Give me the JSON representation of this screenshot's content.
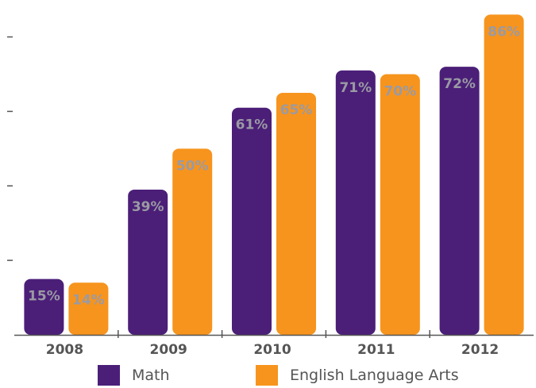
{
  "chart_data": {
    "type": "bar",
    "categories": [
      "2008",
      "2009",
      "2010",
      "2011",
      "2012"
    ],
    "series": [
      {
        "name": "Math",
        "values": [
          15,
          39,
          61,
          71,
          72
        ],
        "labels": [
          "15%",
          "39%",
          "61%",
          "71%",
          "72%"
        ],
        "color": "#4b1f78"
      },
      {
        "name": "English Language Arts",
        "values": [
          14,
          50,
          65,
          70,
          86
        ],
        "labels": [
          "14%",
          "50%",
          "65%",
          "70%",
          "86%"
        ],
        "color": "#f7941d"
      }
    ],
    "ylim": [
      0,
      88
    ],
    "y_ticks": [
      20,
      40,
      60,
      80
    ],
    "y_tick_labels_shown": false,
    "grid": false,
    "legend_position": "bottom",
    "title": "",
    "xlabel": "",
    "ylabel": ""
  },
  "colors": {
    "math": "#4b1f78",
    "ela": "#f7941d",
    "axis": "#555555",
    "data_label": "#9a9aa3",
    "tick_text": "#555555"
  },
  "legend": {
    "items": [
      {
        "label": "Math",
        "color": "#4b1f78"
      },
      {
        "label": "English Language Arts",
        "color": "#f7941d"
      }
    ]
  }
}
